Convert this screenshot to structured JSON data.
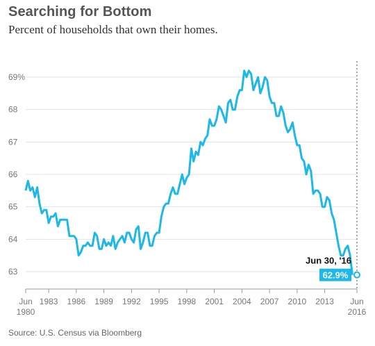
{
  "chart_data": {
    "type": "line",
    "title": "Searching for Bottom",
    "subtitle": "Percent of households that own their homes.",
    "source": "Source: U.S. Census via Bloomberg",
    "xlabel": "",
    "ylabel": "",
    "ylim": [
      62.6,
      69.8
    ],
    "y_ticks": [
      {
        "value": 63,
        "label": "63"
      },
      {
        "value": 64,
        "label": "64"
      },
      {
        "value": 65,
        "label": "65"
      },
      {
        "value": 66,
        "label": "66"
      },
      {
        "value": 67,
        "label": "67"
      },
      {
        "value": 68,
        "label": "68"
      },
      {
        "value": 69,
        "label": "69%"
      }
    ],
    "x_ticks": [
      {
        "value": 1980.5,
        "label": "Jun",
        "label2": "1980"
      },
      {
        "value": 1983,
        "label": "1983"
      },
      {
        "value": 1986,
        "label": "1986"
      },
      {
        "value": 1989,
        "label": "1989"
      },
      {
        "value": 1992,
        "label": "1992"
      },
      {
        "value": 1995,
        "label": "1995"
      },
      {
        "value": 1998,
        "label": "1998"
      },
      {
        "value": 2001,
        "label": "2001"
      },
      {
        "value": 2004,
        "label": "2004"
      },
      {
        "value": 2007,
        "label": "2007"
      },
      {
        "value": 2010,
        "label": "2010"
      },
      {
        "value": 2013,
        "label": "2013"
      },
      {
        "value": 2016.5,
        "label": "Jun",
        "label2": "2016"
      }
    ],
    "grid": true,
    "line_color": "#1cb8e8",
    "annotation": {
      "date_label": "Jun 30, '16",
      "value_label": "62.9%",
      "x": 2016.5,
      "y": 62.9
    },
    "series": [
      {
        "name": "",
        "points": [
          [
            1980.5,
            65.5
          ],
          [
            1980.75,
            65.8
          ],
          [
            1981.0,
            65.5
          ],
          [
            1981.25,
            65.6
          ],
          [
            1981.5,
            65.3
          ],
          [
            1981.75,
            65.6
          ],
          [
            1982.0,
            65.1
          ],
          [
            1982.25,
            64.8
          ],
          [
            1982.5,
            64.9
          ],
          [
            1982.75,
            64.9
          ],
          [
            1983.0,
            64.5
          ],
          [
            1983.25,
            64.7
          ],
          [
            1983.5,
            64.7
          ],
          [
            1983.75,
            64.8
          ],
          [
            1984.0,
            64.4
          ],
          [
            1984.25,
            64.6
          ],
          [
            1984.5,
            64.6
          ],
          [
            1984.75,
            64.6
          ],
          [
            1985.0,
            64.6
          ],
          [
            1985.25,
            64.1
          ],
          [
            1985.5,
            64.1
          ],
          [
            1985.75,
            64.1
          ],
          [
            1986.0,
            64.0
          ],
          [
            1986.25,
            63.5
          ],
          [
            1986.5,
            63.6
          ],
          [
            1986.75,
            63.8
          ],
          [
            1987.0,
            63.8
          ],
          [
            1987.25,
            63.9
          ],
          [
            1987.5,
            63.8
          ],
          [
            1987.75,
            63.8
          ],
          [
            1988.0,
            64.2
          ],
          [
            1988.25,
            64.1
          ],
          [
            1988.5,
            63.7
          ],
          [
            1988.75,
            63.7
          ],
          [
            1989.0,
            64.0
          ],
          [
            1989.25,
            63.8
          ],
          [
            1989.5,
            63.9
          ],
          [
            1989.75,
            63.8
          ],
          [
            1990.0,
            64.1
          ],
          [
            1990.25,
            63.7
          ],
          [
            1990.5,
            63.9
          ],
          [
            1990.75,
            64.0
          ],
          [
            1991.0,
            64.1
          ],
          [
            1991.25,
            63.9
          ],
          [
            1991.5,
            64.2
          ],
          [
            1991.75,
            64.2
          ],
          [
            1992.0,
            64.0
          ],
          [
            1992.25,
            63.9
          ],
          [
            1992.5,
            64.3
          ],
          [
            1992.75,
            64.4
          ],
          [
            1993.0,
            63.7
          ],
          [
            1993.25,
            63.9
          ],
          [
            1993.5,
            64.2
          ],
          [
            1993.75,
            64.2
          ],
          [
            1994.0,
            63.8
          ],
          [
            1994.25,
            63.8
          ],
          [
            1994.5,
            64.1
          ],
          [
            1994.75,
            64.2
          ],
          [
            1995.0,
            64.2
          ],
          [
            1995.25,
            64.7
          ],
          [
            1995.5,
            65.0
          ],
          [
            1995.75,
            65.1
          ],
          [
            1996.0,
            65.1
          ],
          [
            1996.25,
            65.4
          ],
          [
            1996.5,
            65.6
          ],
          [
            1996.75,
            65.4
          ],
          [
            1997.0,
            65.4
          ],
          [
            1997.25,
            65.7
          ],
          [
            1997.5,
            66.0
          ],
          [
            1997.75,
            65.7
          ],
          [
            1998.0,
            65.9
          ],
          [
            1998.25,
            66.0
          ],
          [
            1998.5,
            66.8
          ],
          [
            1998.75,
            66.4
          ],
          [
            1999.0,
            66.7
          ],
          [
            1999.25,
            66.6
          ],
          [
            1999.5,
            67.0
          ],
          [
            1999.75,
            66.9
          ],
          [
            2000.0,
            67.1
          ],
          [
            2000.25,
            67.2
          ],
          [
            2000.5,
            67.7
          ],
          [
            2000.75,
            67.5
          ],
          [
            2001.0,
            67.5
          ],
          [
            2001.25,
            67.7
          ],
          [
            2001.5,
            68.1
          ],
          [
            2001.75,
            68.0
          ],
          [
            2002.0,
            67.8
          ],
          [
            2002.25,
            67.6
          ],
          [
            2002.5,
            68.2
          ],
          [
            2002.75,
            68.3
          ],
          [
            2003.0,
            68.0
          ],
          [
            2003.25,
            68.0
          ],
          [
            2003.5,
            68.4
          ],
          [
            2003.75,
            68.6
          ],
          [
            2004.0,
            68.6
          ],
          [
            2004.25,
            69.2
          ],
          [
            2004.5,
            69.0
          ],
          [
            2004.75,
            69.2
          ],
          [
            2005.0,
            69.1
          ],
          [
            2005.25,
            68.6
          ],
          [
            2005.5,
            68.8
          ],
          [
            2005.75,
            69.0
          ],
          [
            2006.0,
            68.5
          ],
          [
            2006.25,
            68.7
          ],
          [
            2006.5,
            69.0
          ],
          [
            2006.75,
            68.9
          ],
          [
            2007.0,
            68.4
          ],
          [
            2007.25,
            68.2
          ],
          [
            2007.5,
            68.2
          ],
          [
            2007.75,
            67.8
          ],
          [
            2008.0,
            67.8
          ],
          [
            2008.25,
            68.1
          ],
          [
            2008.5,
            67.9
          ],
          [
            2008.75,
            67.5
          ],
          [
            2009.0,
            67.3
          ],
          [
            2009.25,
            67.4
          ],
          [
            2009.5,
            67.6
          ],
          [
            2009.75,
            67.2
          ],
          [
            2010.0,
            66.9
          ],
          [
            2010.25,
            66.9
          ],
          [
            2010.5,
            66.5
          ],
          [
            2010.75,
            66.4
          ],
          [
            2011.0,
            66.0
          ],
          [
            2011.25,
            66.3
          ],
          [
            2011.5,
            66.1
          ],
          [
            2011.75,
            65.4
          ],
          [
            2012.0,
            65.5
          ],
          [
            2012.25,
            65.5
          ],
          [
            2012.5,
            65.4
          ],
          [
            2012.75,
            65.0
          ],
          [
            2013.0,
            65.0
          ],
          [
            2013.25,
            65.3
          ],
          [
            2013.5,
            65.2
          ],
          [
            2013.75,
            64.8
          ],
          [
            2014.0,
            64.6
          ],
          [
            2014.25,
            64.2
          ],
          [
            2014.5,
            63.8
          ],
          [
            2014.75,
            63.5
          ],
          [
            2015.0,
            63.5
          ],
          [
            2015.25,
            63.7
          ],
          [
            2015.5,
            63.8
          ],
          [
            2015.75,
            63.5
          ],
          [
            2016.0,
            62.9
          ]
        ]
      }
    ]
  }
}
